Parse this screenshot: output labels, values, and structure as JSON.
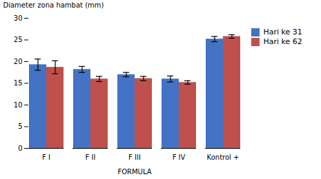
{
  "chart_data": {
    "type": "bar",
    "xlabel": "FORMULA",
    "ylabel": "Diameter zona hambat (mm)",
    "categories": [
      "F I",
      "F II",
      "F III",
      "F IV",
      "Kontrol +"
    ],
    "series": [
      {
        "name": "Hari ke 31",
        "color": "#4472C4",
        "values": [
          19.3,
          18.2,
          17.0,
          16.0,
          25.2
        ],
        "errors": [
          1.3,
          0.7,
          0.5,
          0.7,
          0.6
        ]
      },
      {
        "name": "Hari ke 62",
        "color": "#C0504D",
        "values": [
          18.7,
          16.0,
          16.1,
          15.2,
          25.8
        ],
        "errors": [
          1.5,
          0.6,
          0.5,
          0.4,
          0.4
        ]
      }
    ],
    "ylim": [
      0,
      30
    ],
    "yticks": [
      0,
      5,
      10,
      15,
      20,
      25,
      30
    ],
    "grid": false,
    "legend": "right"
  }
}
